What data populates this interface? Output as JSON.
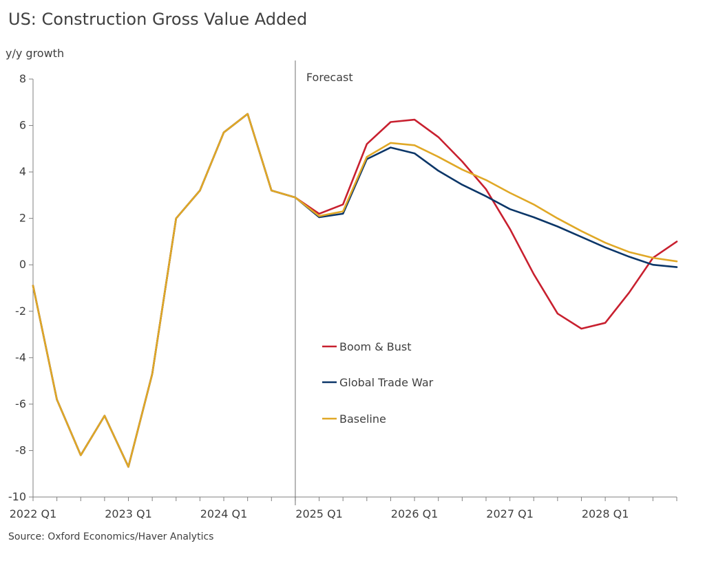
{
  "title": "US: Construction Gross Value Added",
  "source": "Source: Oxford Economics/Haver Analytics",
  "forecast_label": "Forecast",
  "colors": {
    "boom_bust": "#c8202f",
    "trade_war": "#0b3668",
    "baseline": "#e0a826",
    "axis": "#7f7f7f"
  },
  "chart_data": {
    "type": "line",
    "ylabel": "y/y growth",
    "ylim": [
      -10,
      8
    ],
    "yticks": [
      8,
      6,
      4,
      2,
      0,
      -2,
      -4,
      -6,
      -8,
      -10
    ],
    "xticklabels": [
      "2022 Q1",
      "2023 Q1",
      "2024 Q1",
      "2025 Q1",
      "2026 Q1",
      "2027 Q1",
      "2028 Q1"
    ],
    "x": [
      "2022 Q1",
      "2022 Q2",
      "2022 Q3",
      "2022 Q4",
      "2023 Q1",
      "2023 Q2",
      "2023 Q3",
      "2023 Q4",
      "2024 Q1",
      "2024 Q2",
      "2024 Q3",
      "2024 Q4",
      "2025 Q1",
      "2025 Q2",
      "2025 Q3",
      "2025 Q4",
      "2026 Q1",
      "2026 Q2",
      "2026 Q3",
      "2026 Q4",
      "2027 Q1",
      "2027 Q2",
      "2027 Q3",
      "2027 Q4",
      "2028 Q1",
      "2028 Q2",
      "2028 Q3",
      "2028 Q4"
    ],
    "forecast_start": "2024 Q4",
    "legend_position": "center",
    "series": [
      {
        "name": "Boom & Bust",
        "color_key": "boom_bust",
        "values": [
          -0.9,
          -5.8,
          -8.2,
          -6.5,
          -8.7,
          -4.7,
          2.0,
          3.2,
          5.7,
          6.5,
          3.2,
          2.9,
          2.2,
          2.6,
          5.2,
          6.15,
          6.25,
          5.5,
          4.45,
          3.25,
          1.55,
          -0.4,
          -2.1,
          -2.75,
          -2.5,
          -1.2,
          0.3,
          1.0
        ]
      },
      {
        "name": "Global Trade War",
        "color_key": "trade_war",
        "values": [
          -0.9,
          -5.8,
          -8.2,
          -6.5,
          -8.7,
          -4.7,
          2.0,
          3.2,
          5.7,
          6.5,
          3.2,
          2.9,
          2.05,
          2.2,
          4.55,
          5.05,
          4.8,
          4.05,
          3.45,
          2.95,
          2.4,
          2.05,
          1.65,
          1.2,
          0.75,
          0.35,
          0.0,
          -0.1
        ]
      },
      {
        "name": "Baseline",
        "color_key": "baseline",
        "values": [
          -0.9,
          -5.8,
          -8.2,
          -6.5,
          -8.7,
          -4.7,
          2.0,
          3.2,
          5.7,
          6.5,
          3.2,
          2.9,
          2.1,
          2.3,
          4.65,
          5.25,
          5.15,
          4.65,
          4.1,
          3.65,
          3.1,
          2.6,
          2.0,
          1.45,
          0.95,
          0.55,
          0.3,
          0.15
        ]
      }
    ]
  }
}
